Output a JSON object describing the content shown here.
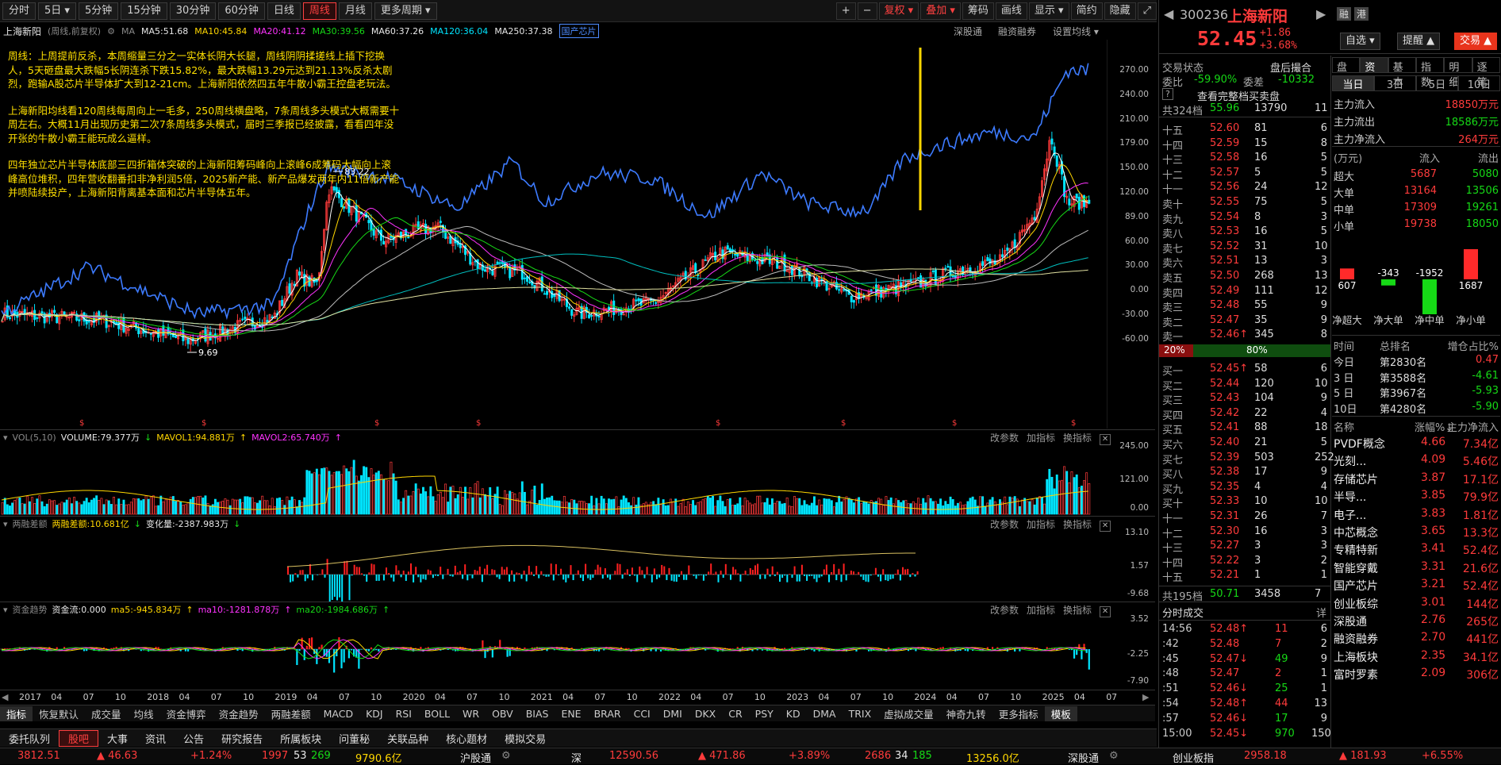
{
  "toolbar": {
    "periods": [
      "分时",
      "5日 ▾",
      "5分钟",
      "15分钟",
      "30分钟",
      "60分钟",
      "日线",
      "周线",
      "月线",
      "更多周期 ▾"
    ],
    "active_period": "周线",
    "right_buttons": [
      "+",
      "−",
      "复权 ▾",
      "叠加 ▾",
      "筹码",
      "画线",
      "显示 ▾",
      "简约",
      "隐藏",
      "⤢"
    ]
  },
  "ma_row": {
    "name": "上海新阳",
    "mode": "(周线,前复权)",
    "ma_label": "MA",
    "ma5": "MA5:51.68",
    "ma10": "MA10:45.84",
    "ma20": "MA20:41.12",
    "ma30": "MA30:39.56",
    "ma60": "MA60:37.26",
    "ma120": "MA120:36.04",
    "ma250": "MA250:37.38",
    "concept": "国产芯片",
    "links": [
      "深股通",
      "融资融券",
      "设置均线 ▾"
    ]
  },
  "comment": [
    "周线：上周提前反杀，本周缩量三分之一实体长阴大长腿，周线阴阴揉搓线上插下挖换人，5天砸盘最大跌幅5长阴连杀下跌15.82%，最大跌幅13.29元达到21.13%反杀太剧烈，跑输A股芯片半导体扩大到12-21cm。上海新阳依然四五年牛散小霸王控盘老玩法。",
    "上海新阳均线看120周线每周向上一毛多，250周线横盘略，7条周线多头模式大概需要十周左右。大概11月出现历史第二次7条周线多头模式，届时三季报已经披露，看看四年没开张的牛散小霸王能玩成么逼样。",
    "四年独立芯片半导体底部三四折箱体突破的上海新阳筹码峰向上滚峰6成筹码大幅向上滚峰高位堆积，四年营收翻番扣非净利润5倍，2025新产能、新产品爆发两年内11倍新产能并喷陆续投产，上海新阳背离基本面和芯片半导体五年。"
  ],
  "price_axis": [
    "270.00",
    "240.00",
    "210.00",
    "179.00",
    "150.00",
    "120.00",
    "89.00",
    "60.00",
    "30.00",
    "0.00",
    "-30.00",
    "-60.00"
  ],
  "price_marks": {
    "high": "83.22",
    "low": "9.69"
  },
  "vol_pane": {
    "title": "VOL(5,10)",
    "volume": "VOLUME:79.377万",
    "mavol1": "MAVOL1:94.881万",
    "mavol2": "MAVOL2:65.740万",
    "axis": [
      "245.00",
      "121.00",
      "0.00"
    ]
  },
  "margin_pane": {
    "title": "两融差额",
    "value": "两融差额:10.681亿",
    "change": "变化量:-2387.983万",
    "axis": [
      "13.10",
      "1.57",
      "-9.68"
    ]
  },
  "fund_pane": {
    "title": "资金趋势",
    "flow": "资金流:0.000",
    "ma5": "ma5:-945.834万",
    "ma10": "ma10:-1281.878万",
    "ma20": "ma20:-1984.686万",
    "axis": [
      "3.52",
      "-2.25",
      "-7.90"
    ]
  },
  "pane_tools": [
    "改参数",
    "加指标",
    "换指标"
  ],
  "date_axis": [
    "2017",
    "04",
    "07",
    "10",
    "2018",
    "04",
    "07",
    "10",
    "2019",
    "04",
    "07",
    "10",
    "2020",
    "04",
    "07",
    "10",
    "2021",
    "04",
    "07",
    "10",
    "2022",
    "04",
    "07",
    "10",
    "2023",
    "04",
    "07",
    "10",
    "2024",
    "04",
    "07",
    "10",
    "2025",
    "04",
    "07"
  ],
  "indicator_tabs": [
    "指标",
    "恢复默认",
    "成交量",
    "均线",
    "资金博弈",
    "资金趋势",
    "两融差额",
    "MACD",
    "KDJ",
    "RSI",
    "BOLL",
    "WR",
    "OBV",
    "BIAS",
    "ENE",
    "BRAR",
    "CCI",
    "DMI",
    "DKX",
    "CR",
    "PSY",
    "KD",
    "DMA",
    "TRIX",
    "虚拟成交量",
    "神奇九转",
    "更多指标",
    "模板"
  ],
  "bottom_tabs": [
    "委托队列",
    "股吧",
    "大事",
    "资讯",
    "公告",
    "研究报告",
    "所属板块",
    "问董秘",
    "关联品种",
    "核心题材",
    "模拟交易"
  ],
  "bottom_active": "股吧",
  "status_bar": {
    "sh_index": "3812.51",
    "sh_change": "▲ 46.63",
    "sh_pct": "+1.24%",
    "sh_up": "1997",
    "sh_flat": "53",
    "sh_down": "269",
    "sh_amount": "9790.6亿",
    "hgt": "沪股通",
    "sz_label": "深",
    "sz_index": "12590.56",
    "sz_change": "▲ 471.86",
    "sz_pct": "+3.89%",
    "sz_up": "2686",
    "sz_flat": "34",
    "sz_down": "185",
    "sz_amount": "13256.0亿",
    "sgt": "深股通",
    "cy_label": "创业板指",
    "cy_index": "2958.18",
    "cy_change": "▲ 181.93",
    "cy_pct": "+6.55%"
  },
  "quote": {
    "code": "300236",
    "name": "上海新阳",
    "price": "52.45",
    "change": "+1.86",
    "pct": "+3.68%",
    "tags": [
      "融",
      "港"
    ],
    "buttons": [
      "自选 ▾",
      "提醒 ▲",
      "交易 ▲"
    ],
    "trade_state_label": "交易状态",
    "trade_state": "盘后撮合",
    "weibi_label": "委比",
    "weibi": "-59.90%",
    "weicha_label": "委差",
    "weicha": "-10332",
    "full_book": "查看完整档买卖盘",
    "sell_total": {
      "label": "共324档",
      "price": "55.96",
      "vol": "13790",
      "n": "11"
    },
    "buy_total": {
      "label": "共195档",
      "price": "50.71",
      "vol": "3458",
      "n": "7"
    },
    "ratio_left": "20%",
    "ratio_right": "80%",
    "asks": [
      {
        "l": "十五",
        "p": "52.60",
        "v": "81",
        "n": "6"
      },
      {
        "l": "十四",
        "p": "52.59",
        "v": "15",
        "n": "8"
      },
      {
        "l": "十三",
        "p": "52.58",
        "v": "16",
        "n": "5"
      },
      {
        "l": "十二",
        "p": "52.57",
        "v": "5",
        "n": "5"
      },
      {
        "l": "十一",
        "p": "52.56",
        "v": "24",
        "n": "12"
      },
      {
        "l": "卖十",
        "p": "52.55",
        "v": "75",
        "n": "5"
      },
      {
        "l": "卖九",
        "p": "52.54",
        "v": "8",
        "n": "3"
      },
      {
        "l": "卖八",
        "p": "52.53",
        "v": "16",
        "n": "5"
      },
      {
        "l": "卖七",
        "p": "52.52",
        "v": "31",
        "n": "10"
      },
      {
        "l": "卖六",
        "p": "52.51",
        "v": "13",
        "n": "3"
      },
      {
        "l": "卖五",
        "p": "52.50",
        "v": "268",
        "n": "13"
      },
      {
        "l": "卖四",
        "p": "52.49",
        "v": "111",
        "n": "12"
      },
      {
        "l": "卖三",
        "p": "52.48",
        "v": "55",
        "n": "9"
      },
      {
        "l": "卖二",
        "p": "52.47",
        "v": "35",
        "n": "9"
      },
      {
        "l": "卖一",
        "p": "52.46↑",
        "v": "345",
        "n": "8"
      }
    ],
    "bids": [
      {
        "l": "买一",
        "p": "52.45↑",
        "v": "58",
        "n": "6"
      },
      {
        "l": "买二",
        "p": "52.44",
        "v": "120",
        "n": "10"
      },
      {
        "l": "买三",
        "p": "52.43",
        "v": "104",
        "n": "9"
      },
      {
        "l": "买四",
        "p": "52.42",
        "v": "22",
        "n": "4"
      },
      {
        "l": "买五",
        "p": "52.41",
        "v": "88",
        "n": "18"
      },
      {
        "l": "买六",
        "p": "52.40",
        "v": "21",
        "n": "5"
      },
      {
        "l": "买七",
        "p": "52.39",
        "v": "503",
        "n": "252"
      },
      {
        "l": "买八",
        "p": "52.38",
        "v": "17",
        "n": "9"
      },
      {
        "l": "买九",
        "p": "52.35",
        "v": "4",
        "n": "4"
      },
      {
        "l": "买十",
        "p": "52.33",
        "v": "10",
        "n": "10"
      },
      {
        "l": "十一",
        "p": "52.31",
        "v": "26",
        "n": "7"
      },
      {
        "l": "十二",
        "p": "52.30",
        "v": "16",
        "n": "3"
      },
      {
        "l": "十三",
        "p": "52.27",
        "v": "3",
        "n": "3"
      },
      {
        "l": "十四",
        "p": "52.22",
        "v": "3",
        "n": "2"
      },
      {
        "l": "十五",
        "p": "52.21",
        "v": "1",
        "n": "1"
      }
    ],
    "ticks_title": "分时成交",
    "ticks_more": "详",
    "ticks": [
      {
        "t": "14:56",
        "p": "52.48↑",
        "v": "11",
        "n": "6"
      },
      {
        "t": ":42",
        "p": "52.48",
        "v": "7",
        "n": "2"
      },
      {
        "t": ":45",
        "p": "52.47↓",
        "v": "49",
        "n": "9"
      },
      {
        "t": ":48",
        "p": "52.47",
        "v": "2",
        "n": "1"
      },
      {
        "t": ":51",
        "p": "52.46↓",
        "v": "25",
        "n": "1"
      },
      {
        "t": ":54",
        "p": "52.48↑",
        "v": "44",
        "n": "13"
      },
      {
        "t": ":57",
        "p": "52.46↓",
        "v": "17",
        "n": "9"
      },
      {
        "t": "15:00",
        "p": "52.45↓",
        "v": "970",
        "n": "150"
      }
    ]
  },
  "fund": {
    "tabs": [
      "盘口",
      "资金",
      "基本",
      "指数",
      "明细",
      "逐笔"
    ],
    "active_tab": "资金",
    "periods": [
      "当日",
      "3日",
      "5日",
      "10日"
    ],
    "inflow_label": "主力流入",
    "inflow": "18850万元",
    "outflow_label": "主力流出",
    "outflow": "18586万元",
    "net_label": "主力净流入",
    "net": "264万元",
    "unit": "(万元)",
    "in_h": "流入",
    "out_h": "流出",
    "rows": [
      {
        "k": "超大",
        "in": "5687",
        "out": "5080"
      },
      {
        "k": "大单",
        "in": "13164",
        "out": "13506"
      },
      {
        "k": "中单",
        "in": "17309",
        "out": "19261"
      },
      {
        "k": "小单",
        "in": "19738",
        "out": "18050"
      }
    ],
    "net_bars": [
      {
        "k": "净超大",
        "v": 607,
        "label": "607"
      },
      {
        "k": "净大单",
        "v": -343,
        "label": "-343"
      },
      {
        "k": "净中单",
        "v": -1952,
        "label": "-1952"
      },
      {
        "k": "净小单",
        "v": 1687,
        "label": "1687"
      }
    ],
    "rank_h": [
      "时间",
      "总排名",
      "增仓占比%"
    ],
    "ranks": [
      {
        "t": "今日",
        "r": "第2830名",
        "v": "0.47"
      },
      {
        "t": "3 日",
        "r": "第3588名",
        "v": "-4.61"
      },
      {
        "t": "5 日",
        "r": "第3967名",
        "v": "-5.93"
      },
      {
        "t": "10日",
        "r": "第4280名",
        "v": "-5.90"
      }
    ],
    "sector_h": [
      "名称",
      "涨幅%↓",
      "主力净流入"
    ],
    "sectors": [
      {
        "n": "PVDF概念",
        "p": "4.66",
        "f": "7.34亿"
      },
      {
        "n": "光刻...",
        "p": "4.09",
        "f": "5.46亿"
      },
      {
        "n": "存储芯片",
        "p": "3.87",
        "f": "17.1亿"
      },
      {
        "n": "半导...",
        "p": "3.85",
        "f": "79.9亿"
      },
      {
        "n": "电子...",
        "p": "3.83",
        "f": "1.81亿"
      },
      {
        "n": "中芯概念",
        "p": "3.65",
        "f": "13.3亿"
      },
      {
        "n": "专精特新",
        "p": "3.41",
        "f": "52.4亿"
      },
      {
        "n": "智能穿戴",
        "p": "3.31",
        "f": "21.6亿"
      },
      {
        "n": "国产芯片",
        "p": "3.21",
        "f": "52.4亿"
      },
      {
        "n": "创业板综",
        "p": "3.01",
        "f": "144亿"
      },
      {
        "n": "深股通",
        "p": "2.76",
        "f": "265亿"
      },
      {
        "n": "融资融券",
        "p": "2.70",
        "f": "441亿"
      },
      {
        "n": "上海板块",
        "p": "2.35",
        "f": "34.1亿"
      },
      {
        "n": "富时罗素",
        "p": "2.09",
        "f": "306亿"
      }
    ]
  },
  "colors": {
    "up": "#ff3b3b",
    "down": "#00e5ff",
    "accent": "#ff4040",
    "comment": "#ffe000"
  }
}
